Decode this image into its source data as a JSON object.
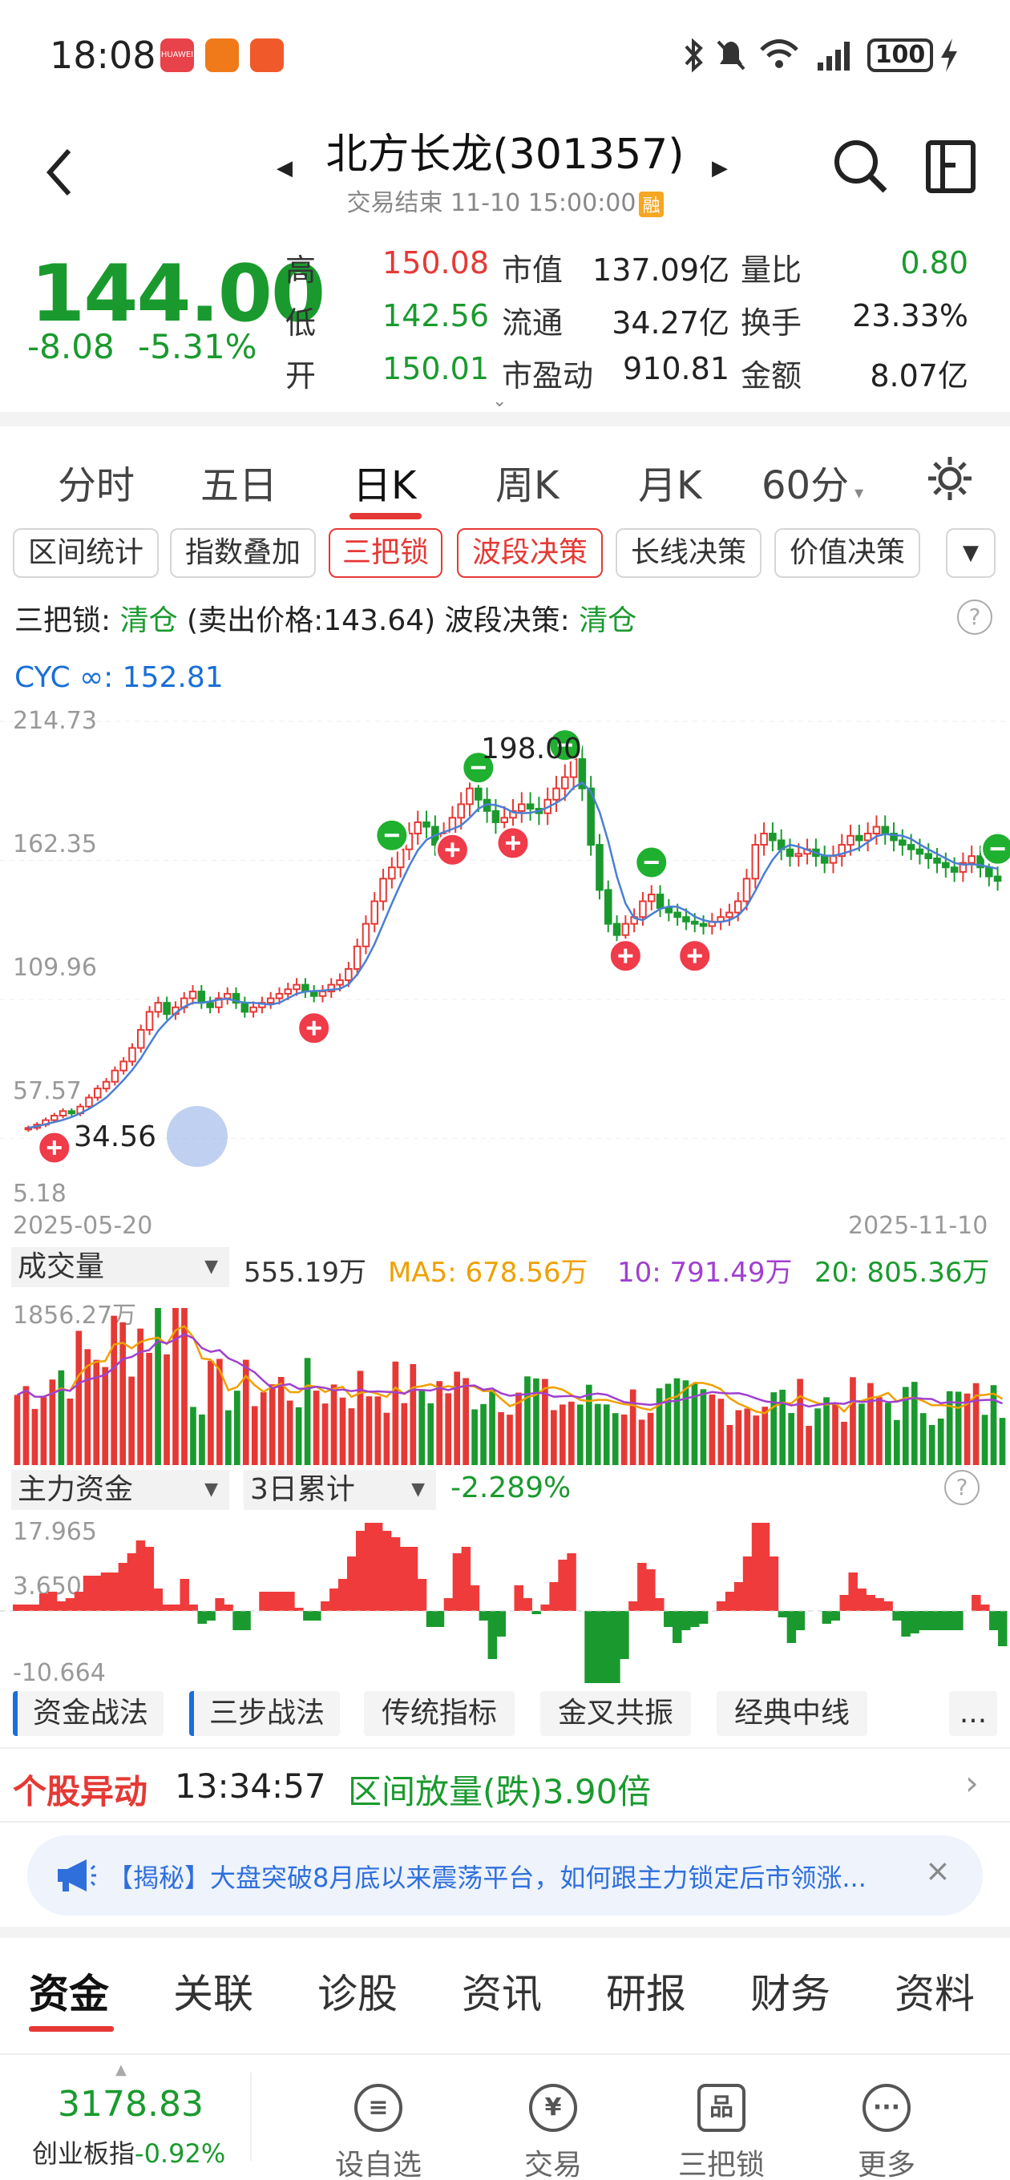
{
  "status_bar": {
    "time": "18:08",
    "battery": "100",
    "app_badges": [
      "HUAWEI",
      "",
      ""
    ]
  },
  "header": {
    "title": "北方长龙(301357)",
    "subtitle": "交易结束 11-10 15:00:00",
    "badge": "融"
  },
  "quote": {
    "price": "144.00",
    "change": "-8.08",
    "change_pct": "-5.31%",
    "rows": [
      {
        "l1": "高",
        "v1": "150.08",
        "l2": "市值",
        "v2": "137.09亿",
        "l3": "量比",
        "v3": "0.80"
      },
      {
        "l1": "低",
        "v1": "142.56",
        "l2": "流通",
        "v2": "34.27亿",
        "l3": "换手",
        "v3": "23.33%"
      },
      {
        "l1": "开",
        "v1": "150.01",
        "l2": "市盈动",
        "v2": "910.81",
        "l3": "金额",
        "v3": "8.07亿"
      }
    ]
  },
  "period_tabs": [
    "分时",
    "五日",
    "日K",
    "周K",
    "月K",
    "60分"
  ],
  "tools": [
    "区间统计",
    "指数叠加",
    "三把锁",
    "波段决策",
    "长线决策",
    "价值决策"
  ],
  "signals": {
    "lock_label": "三把锁: ",
    "lock_value": "清仓",
    "lock_extra": " (卖出价格:143.64)",
    "wave_label": "  波段决策: ",
    "wave_value": "清仓"
  },
  "cyc": "CYC ∞: 152.81",
  "chart_data": {
    "type": "candlestick",
    "y_ticks": [
      "214.73",
      "162.35",
      "109.96",
      "57.57",
      "5.18"
    ],
    "ylim": [
      5.18,
      214.73
    ],
    "x_start": "2025-05-20",
    "x_end": "2025-11-10",
    "annotations": [
      {
        "label": "198.00"
      },
      {
        "label": "34.56"
      }
    ],
    "closes": [
      34.56,
      36,
      38,
      40,
      42,
      41,
      44,
      48,
      52,
      55,
      60,
      64,
      70,
      78,
      86,
      90,
      85,
      88,
      92,
      95,
      90,
      88,
      92,
      94,
      90,
      86,
      88,
      90,
      92,
      94,
      96,
      98,
      95,
      93,
      95,
      98,
      100,
      105,
      115,
      125,
      135,
      145,
      150,
      158,
      165,
      170,
      168,
      160,
      165,
      172,
      178,
      185,
      180,
      175,
      170,
      172,
      175,
      178,
      176,
      174,
      180,
      185,
      190,
      198,
      185,
      160,
      140,
      125,
      120,
      125,
      128,
      135,
      138,
      132,
      130,
      128,
      126,
      125,
      124,
      126,
      128,
      130,
      135,
      145,
      160,
      165,
      162,
      158,
      155,
      156,
      158,
      155,
      152,
      155,
      160,
      164,
      162,
      165,
      168,
      165,
      162,
      160,
      158,
      156,
      154,
      152,
      150,
      148,
      152,
      155,
      150,
      146,
      144
    ]
  },
  "volume": {
    "selector": "成交量",
    "value": "555.19万",
    "ma5": "MA5: 678.56万",
    "ma10": "10: 791.49万",
    "ma20": "20: 805.36万",
    "max_label": "1856.27万"
  },
  "capital": {
    "selector": "主力资金",
    "period": "3日累计",
    "value": "-2.289%",
    "top_label": "17.965",
    "mid_label": "3.650",
    "bottom_label": "-10.664"
  },
  "strategies": [
    "资金战法",
    "三步战法",
    "传统指标",
    "金叉共振",
    "经典中线",
    "..."
  ],
  "alert": {
    "label": "个股异动",
    "time": "13:34:57",
    "text": "区间放量(跌)3.90倍"
  },
  "news": "【揭秘】大盘突破8月底以来震荡平台，如何跟主力锁定后市领涨...",
  "bottom_tabs": [
    "资金",
    "关联",
    "诊股",
    "资讯",
    "研报",
    "财务",
    "资料"
  ],
  "index": {
    "value": "3178.83",
    "name": "创业板指",
    "pct": "-0.92%"
  },
  "nav": [
    "设自选",
    "交易",
    "三把锁",
    "更多"
  ]
}
